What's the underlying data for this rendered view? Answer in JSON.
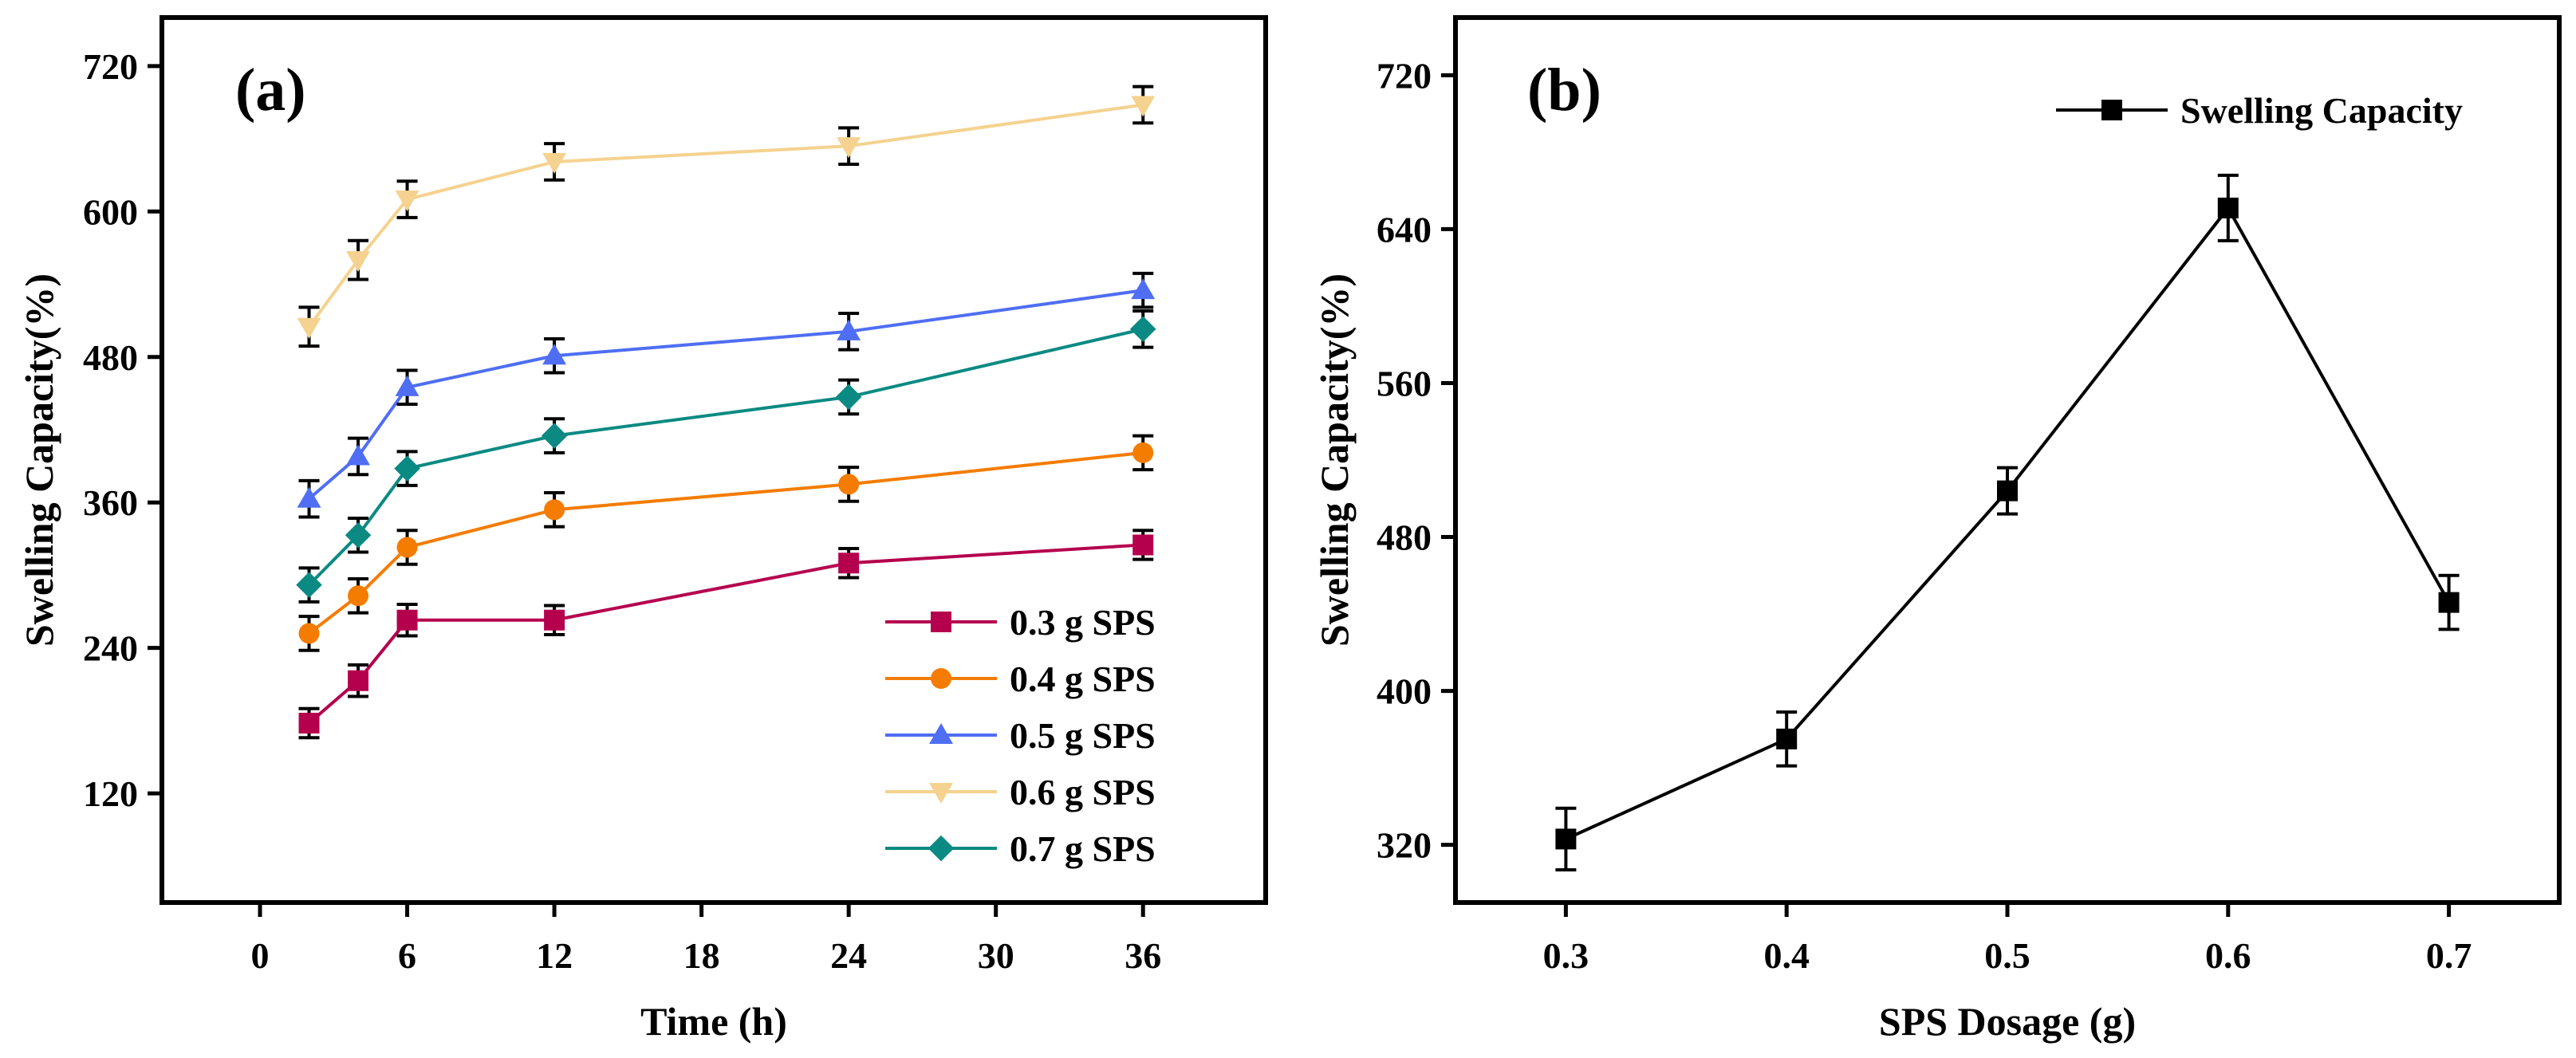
{
  "chart_data": [
    {
      "type": "line",
      "panel_label": "(a)",
      "title": "",
      "xlabel": "Time (h)",
      "ylabel": "Swelling Capacity(%)",
      "xlim": [
        -4,
        41
      ],
      "ylim": [
        30,
        760
      ],
      "xticks": [
        0,
        6,
        12,
        18,
        24,
        30,
        36
      ],
      "yticks": [
        120,
        240,
        360,
        480,
        600,
        720
      ],
      "legend_position": "bottom-right",
      "series": [
        {
          "name": "0.3 g SPS",
          "color": "#b5004e",
          "marker": "square",
          "x": [
            2,
            4,
            6,
            12,
            24,
            36
          ],
          "values": [
            178,
            213,
            263,
            263,
            310,
            325
          ],
          "errors": [
            12,
            13,
            13,
            12,
            12,
            12
          ]
        },
        {
          "name": "0.4 g SPS",
          "color": "#f47c00",
          "marker": "circle",
          "x": [
            2,
            4,
            6,
            12,
            24,
            36
          ],
          "values": [
            252,
            283,
            323,
            354,
            375,
            401
          ],
          "errors": [
            14,
            14,
            14,
            14,
            14,
            14
          ]
        },
        {
          "name": "0.5 g SPS",
          "color": "#4f6ef3",
          "marker": "triangle-up",
          "x": [
            2,
            4,
            6,
            12,
            24,
            36
          ],
          "values": [
            363,
            398,
            455,
            481,
            501,
            535
          ],
          "errors": [
            15,
            15,
            14,
            14,
            15,
            14
          ]
        },
        {
          "name": "0.6 g SPS",
          "color": "#f5d28f",
          "marker": "triangle-down",
          "x": [
            2,
            4,
            6,
            12,
            24,
            36
          ],
          "values": [
            505,
            560,
            610,
            641,
            654,
            688
          ],
          "errors": [
            16,
            16,
            15,
            15,
            15,
            15
          ]
        },
        {
          "name": "0.7 g SPS",
          "color": "#0a8a82",
          "marker": "diamond",
          "x": [
            2,
            4,
            6,
            12,
            24,
            36
          ],
          "values": [
            292,
            333,
            388,
            415,
            447,
            503
          ],
          "errors": [
            14,
            14,
            14,
            14,
            14,
            15
          ]
        }
      ]
    },
    {
      "type": "line",
      "panel_label": "(b)",
      "title": "",
      "xlabel": "SPS Dosage (g)",
      "ylabel": "Swelling Capacity(%)",
      "xlim": [
        0.25,
        0.75
      ],
      "ylim": [
        290,
        750
      ],
      "xticks": [
        0.3,
        0.4,
        0.5,
        0.6,
        0.7
      ],
      "xtick_labels": [
        "0.3",
        "0.4",
        "0.5",
        "0.6",
        "0.7"
      ],
      "yticks": [
        320,
        400,
        480,
        560,
        640,
        720
      ],
      "legend_position": "top-right",
      "series": [
        {
          "name": "Swelling Capacity",
          "color": "#000000",
          "marker": "square",
          "x": [
            0.3,
            0.4,
            0.5,
            0.6,
            0.7
          ],
          "values": [
            323,
            375,
            504,
            651,
            446
          ],
          "errors": [
            16,
            14,
            12,
            17,
            14
          ]
        }
      ]
    }
  ]
}
